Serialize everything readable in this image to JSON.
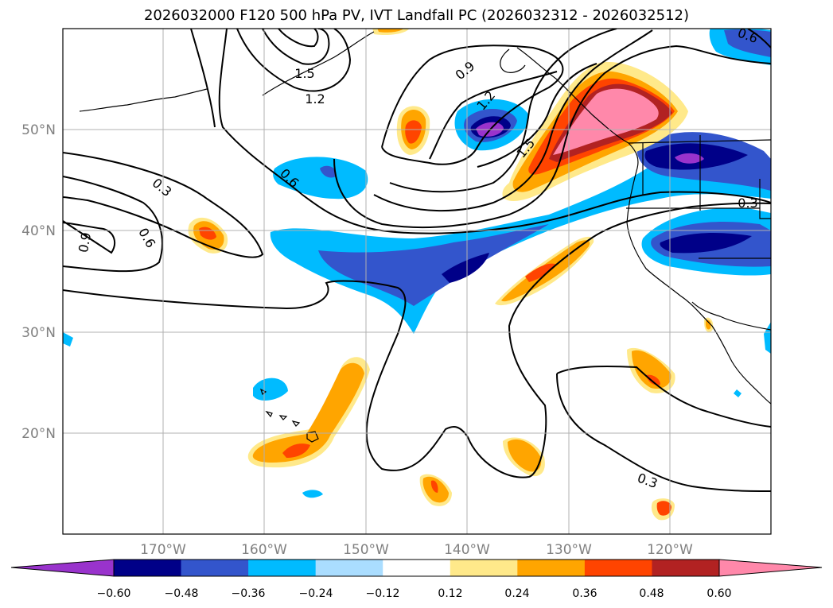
{
  "title": "2026032000 F120 500 hPa PV, IVT Landfall PC (2026032312 - 2026032512)",
  "lon_ticks": [
    "170°W",
    "160°W",
    "150°W",
    "140°W",
    "130°W",
    "120°W"
  ],
  "lat_ticks": [
    "50°N",
    "40°N",
    "30°N",
    "20°N"
  ],
  "colorbar": {
    "colors": [
      "#9933cc",
      "#000088",
      "#3355cc",
      "#00bbff",
      "#aaddff",
      "#ffffff",
      "#ffe98a",
      "#ffa500",
      "#ff4400",
      "#b22222",
      "#ff88aa"
    ],
    "labels": [
      "−0.60",
      "−0.48",
      "−0.36",
      "−0.24",
      "−0.12",
      "0.12",
      "0.24",
      "0.36",
      "0.48",
      "0.60"
    ]
  },
  "contour_labels": [
    "1.5",
    "1.2",
    "0.9",
    "1.2",
    "1.5",
    "0.3",
    "0.6",
    "0.9",
    "0.6",
    "0.3",
    "0.3",
    "0.6"
  ]
}
